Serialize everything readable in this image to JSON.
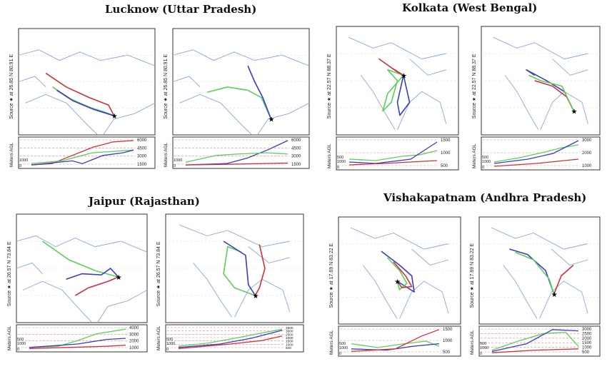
{
  "colors": {
    "red": "#d32f3a",
    "green": "#5ccf5a",
    "blue": "#3b3bc4",
    "map": "#8aa8d8",
    "frame": "#333333",
    "dashed": "#e08a8a"
  },
  "common": {
    "source_label": "Source ★ at",
    "axis_label": "Meters AGL"
  },
  "cities": [
    {
      "title": "Lucknow (Uttar Pradesh)",
      "panels": [
        {
          "coords": "26.85 N   80.91 E",
          "yticks": [
            "6000",
            "4500",
            "3000",
            "1500"
          ],
          "left_ticks": [
            "1000"
          ],
          "zero": "0"
        },
        {
          "coords": "26.85 N   80.91 E",
          "yticks": [
            "6000",
            "4500",
            "3000",
            "1500"
          ],
          "left_ticks": [
            "1000"
          ],
          "zero": "0"
        }
      ]
    },
    {
      "title": "Kolkata (West Bengal)",
      "panels": [
        {
          "coords": "22.57 N   88.37 E",
          "yticks": [
            "1500",
            "1000",
            "500"
          ],
          "left_ticks": [
            "1000",
            "500"
          ],
          "zero": "0"
        },
        {
          "coords": "22.57 N   88.37 E",
          "yticks": [
            "3000",
            "2000",
            "1000"
          ],
          "left_ticks": [
            "1000",
            "500"
          ],
          "zero": "0"
        }
      ]
    },
    {
      "title": "Jaipur (Rajasthan)",
      "panels": [
        {
          "coords": "26.57 N   73.84 E",
          "yticks": [
            "4000",
            "3000",
            "2000",
            "1000"
          ],
          "left_ticks": [
            "1000",
            "500"
          ],
          "zero": "0"
        },
        {
          "coords": "26.57 N   73.84 E",
          "yticks": [
            "3500",
            "3000",
            "2500",
            "2000",
            "1500",
            "1000",
            "500"
          ],
          "left_ticks": [
            "1000",
            "500"
          ],
          "zero": "0"
        }
      ]
    },
    {
      "title": "Vishakapatnam (Andhra Pradesh)",
      "panels": [
        {
          "coords": "17.69 N   83.22 E",
          "yticks": [
            "1500",
            "1000",
            "500"
          ],
          "left_ticks": [
            "1000",
            "500"
          ],
          "zero": "0"
        },
        {
          "coords": "17.69 N   83.22 E",
          "yticks": [
            "3000",
            "2500",
            "2000",
            "1500",
            "1000",
            "500"
          ],
          "left_ticks": [
            "1000",
            "500"
          ],
          "zero": "0"
        }
      ]
    }
  ]
}
